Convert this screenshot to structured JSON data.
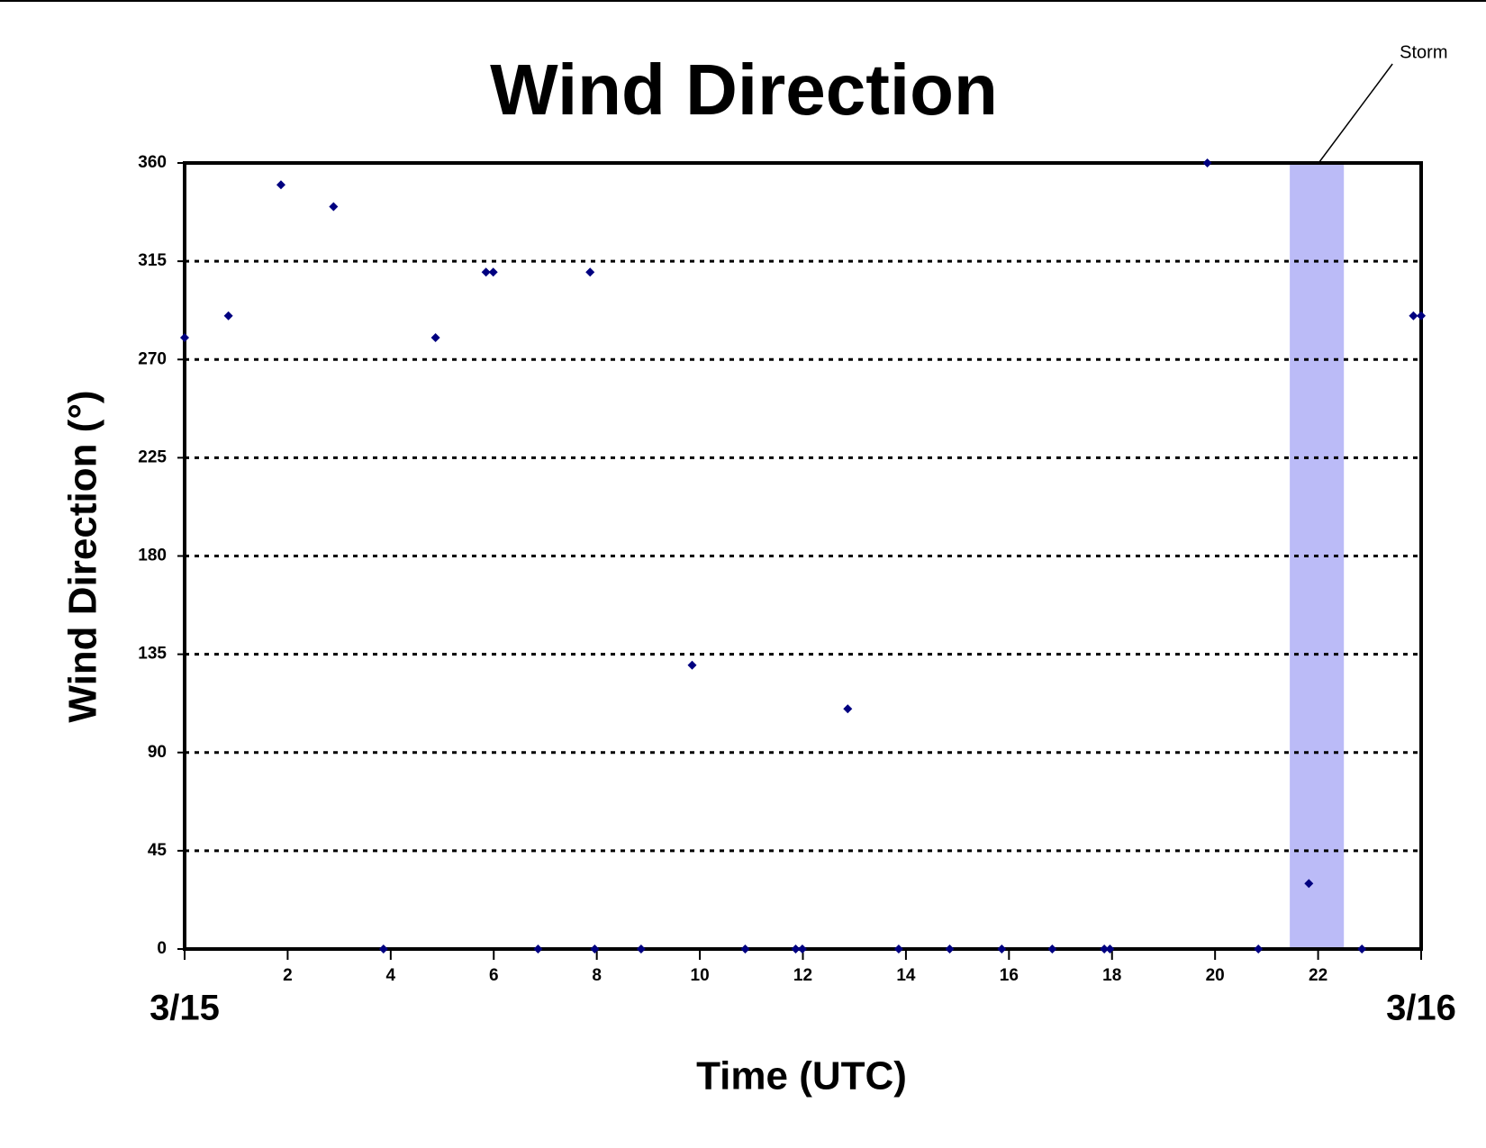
{
  "chart_data": {
    "type": "scatter",
    "title": "Wind Direction",
    "x_label": "Time (UTC)",
    "y_label": "Wind Direction (°)",
    "xlim": [
      0,
      24
    ],
    "ylim": [
      0,
      360
    ],
    "xticks": [
      {
        "value": 0,
        "label": "3/15"
      },
      2,
      4,
      6,
      8,
      10,
      12,
      14,
      16,
      18,
      20,
      22,
      {
        "value": 24,
        "label": "3/16"
      }
    ],
    "yticks": [
      0,
      45,
      90,
      135,
      180,
      225,
      270,
      315,
      360
    ],
    "grid": true,
    "shaded_band": {
      "label": "Storm",
      "range": [
        21.45,
        22.5
      ],
      "color": "#bbbbf7"
    },
    "series": [
      {
        "name": "Wind Direction",
        "color": "#000080",
        "x": [
          0,
          0.85,
          1.87,
          2.89,
          3.86,
          4.87,
          5.85,
          5.99,
          6.86,
          7.87,
          7.96,
          8.86,
          9.85,
          10.88,
          11.86,
          11.99,
          12.87,
          13.86,
          14.85,
          15.86,
          16.84,
          17.85,
          17.96,
          19.85,
          20.84,
          21.82,
          22.85,
          23.85,
          24
        ],
        "values": [
          280,
          290,
          350,
          340,
          0,
          280,
          310,
          310,
          0,
          310,
          0,
          0,
          130,
          0,
          0,
          0,
          110,
          0,
          0,
          0,
          0,
          0,
          0,
          360,
          0,
          30,
          0,
          290,
          290
        ]
      }
    ]
  }
}
